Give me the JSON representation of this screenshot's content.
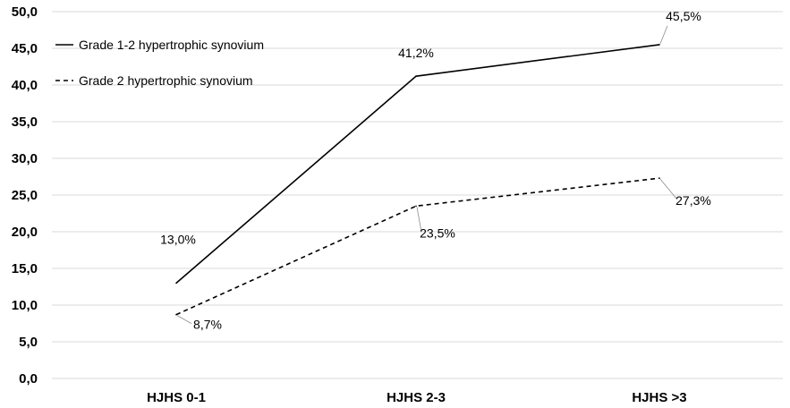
{
  "chart_data": {
    "type": "line",
    "categories": [
      "HJHS 0-1",
      "HJHS 2-3",
      "HJHS >3"
    ],
    "ylim": [
      0,
      50
    ],
    "y_ticks": [
      "0,0",
      "5,0",
      "10,0",
      "15,0",
      "20,0",
      "25,0",
      "30,0",
      "35,0",
      "40,0",
      "45,0",
      "50,0"
    ],
    "y_tick_values": [
      0,
      5,
      10,
      15,
      20,
      25,
      30,
      35,
      40,
      45,
      50
    ],
    "grid": true,
    "legend_position": "top-left",
    "series": [
      {
        "name": "Grade 1-2 hypertrophic synovium",
        "values": [
          13.0,
          41.2,
          45.5
        ],
        "labels": [
          "13,0%",
          "41,2%",
          "45,5%"
        ],
        "style": "solid",
        "color": "#000000"
      },
      {
        "name": "Grade 2 hypertrophic synovium",
        "values": [
          8.7,
          23.5,
          27.3
        ],
        "labels": [
          "8,7%",
          "23,5%",
          "27,3%"
        ],
        "style": "dashed",
        "color": "#000000"
      }
    ]
  }
}
